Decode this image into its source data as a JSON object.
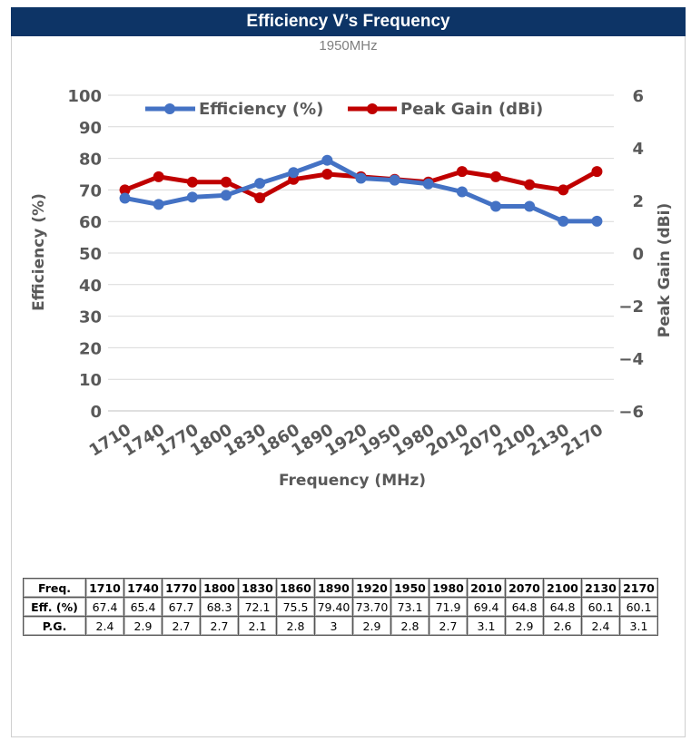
{
  "header": {
    "title": "Efficiency V’s Frequency",
    "subtitle": "1950MHz"
  },
  "colors": {
    "efficiency": "#4472c4",
    "peak_gain": "#c00000",
    "header_bg": "#0d3466"
  },
  "chart_data": {
    "type": "line",
    "title": "Efficiency V’s Frequency",
    "subtitle": "1950MHz",
    "xlabel": "Frequency (MHz)",
    "categories": [
      "1710",
      "1740",
      "1770",
      "1800",
      "1830",
      "1860",
      "1890",
      "1920",
      "1950",
      "1980",
      "2010",
      "2070",
      "2100",
      "2130",
      "2170"
    ],
    "series": [
      {
        "name": "Efficiency (%)",
        "axis": "left",
        "values": [
          67.4,
          65.4,
          67.7,
          68.3,
          72.1,
          75.5,
          79.4,
          73.7,
          73.1,
          71.9,
          69.4,
          64.8,
          64.8,
          60.1,
          60.1
        ]
      },
      {
        "name": "Peak Gain (dBi)",
        "axis": "right",
        "values": [
          2.4,
          2.9,
          2.7,
          2.7,
          2.1,
          2.8,
          3,
          2.9,
          2.8,
          2.7,
          3.1,
          2.9,
          2.6,
          2.4,
          3.1
        ]
      }
    ],
    "y_left": {
      "label": "Efficiency (%)",
      "range": [
        0,
        100
      ],
      "ticks": [
        "0",
        "10",
        "20",
        "30",
        "40",
        "50",
        "60",
        "70",
        "80",
        "90",
        "100"
      ]
    },
    "y_right": {
      "label": "Peak Gain (dBi)",
      "range": [
        -6,
        6
      ],
      "ticks": [
        "-6",
        "-4",
        "-2",
        "0",
        "2",
        "4",
        "6"
      ]
    },
    "grid": true,
    "legend": "top"
  },
  "table": {
    "rows": [
      {
        "label": "Freq.",
        "cells": [
          "1710",
          "1740",
          "1770",
          "1800",
          "1830",
          "1860",
          "1890",
          "1920",
          "1950",
          "1980",
          "2010",
          "2070",
          "2100",
          "2130",
          "2170"
        ]
      },
      {
        "label": "Eff. (%)",
        "cells": [
          "67.4",
          "65.4",
          "67.7",
          "68.3",
          "72.1",
          "75.5",
          "79.40",
          "73.70",
          "73.1",
          "71.9",
          "69.4",
          "64.8",
          "64.8",
          "60.1",
          "60.1"
        ]
      },
      {
        "label": "P.G.",
        "cells": [
          "2.4",
          "2.9",
          "2.7",
          "2.7",
          "2.1",
          "2.8",
          "3",
          "2.9",
          "2.8",
          "2.7",
          "3.1",
          "2.9",
          "2.6",
          "2.4",
          "3.1"
        ]
      }
    ]
  }
}
